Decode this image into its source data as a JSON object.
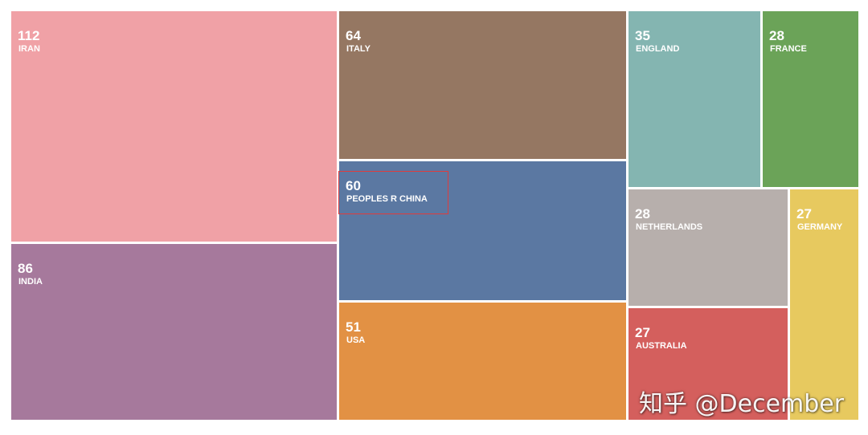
{
  "chart_data": {
    "type": "treemap",
    "items": [
      {
        "label": "IRAN",
        "value": 112,
        "color": "#f0a1a6"
      },
      {
        "label": "INDIA",
        "value": 86,
        "color": "#a6799c"
      },
      {
        "label": "ITALY",
        "value": 64,
        "color": "#957762"
      },
      {
        "label": "PEOPLES R CHINA",
        "value": 60,
        "color": "#5b78a2"
      },
      {
        "label": "USA",
        "value": 51,
        "color": "#e29144"
      },
      {
        "label": "ENGLAND",
        "value": 35,
        "color": "#84b5b1"
      },
      {
        "label": "FRANCE",
        "value": 28,
        "color": "#6ba358"
      },
      {
        "label": "NETHERLANDS",
        "value": 28,
        "color": "#b7afac"
      },
      {
        "label": "AUSTRALIA",
        "value": 27,
        "color": "#d45f5d"
      },
      {
        "label": "GERMANY",
        "value": 27,
        "color": "#e7c95f"
      }
    ],
    "highlighted": "PEOPLES R CHINA"
  },
  "watermark": "知乎 @December"
}
